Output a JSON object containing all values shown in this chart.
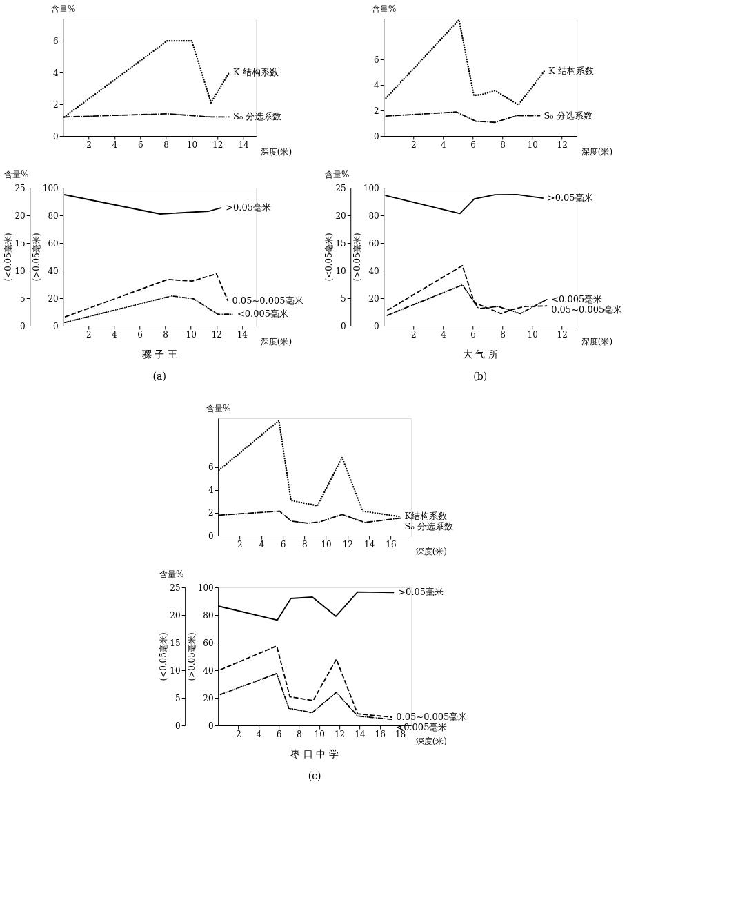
{
  "chart_data": [
    {
      "type": "line",
      "ylabel": "含量%",
      "xlabel": "深度(米)",
      "xlim": [
        0,
        15
      ],
      "xticks": [
        2,
        4,
        6,
        8,
        10,
        12,
        14
      ],
      "ylim": [
        0,
        7.4
      ],
      "yticks": [
        0,
        2,
        4,
        6
      ],
      "grid": false,
      "series": [
        {
          "name": "K 结构系数",
          "color": "#000000",
          "line_style": "dotted",
          "x": [
            0.1,
            8.1,
            10.0,
            11.5,
            12.9
          ],
          "values": [
            1.2,
            6.0,
            6.0,
            2.1,
            4.0
          ]
        },
        {
          "name": "S₀ 分选系数",
          "color": "#000000",
          "line_style": "dashdot",
          "x": [
            0.1,
            4,
            8.1,
            11.5,
            12.9
          ],
          "values": [
            1.2,
            1.3,
            1.4,
            1.2,
            1.2
          ]
        }
      ]
    },
    {
      "type": "line",
      "title": "含量%",
      "ylabel": "(>0.05毫米)",
      "y2label": "(<0.05毫米)",
      "xlabel": "深度(米)",
      "xlim": [
        0,
        15.1
      ],
      "xticks": [
        2,
        4,
        6,
        8,
        10,
        12,
        14
      ],
      "ylim": [
        0,
        100
      ],
      "yticks": [
        0,
        20,
        40,
        60,
        80,
        100
      ],
      "y2lim": [
        0,
        25
      ],
      "y2ticks": [
        0,
        5,
        10,
        15,
        20,
        25
      ],
      "grid": false,
      "annotations": [
        "骡 子 王",
        "(a)"
      ],
      "series": [
        {
          "name": ">0.05毫米",
          "color": "#000000",
          "line_style": "solid",
          "x": [
            0.1,
            7.6,
            11.4,
            12.4
          ],
          "values": [
            95,
            81,
            83,
            85.6
          ]
        },
        {
          "name": "0.05~0.005毫米",
          "color": "#000000",
          "line_style": "dashed",
          "axis": "y2",
          "x": [
            0.15,
            8.2,
            10.1,
            12.0,
            12.9
          ],
          "values": [
            1.6,
            8.4,
            8.1,
            9.4,
            4.5
          ]
        },
        {
          "name": "<0.005毫米",
          "color": "#000000",
          "line_style": "dashdotdot",
          "axis": "y2",
          "x": [
            0.15,
            8.5,
            10.2,
            12.1,
            13.3
          ],
          "values": [
            0.6,
            5.4,
            4.9,
            2.1,
            2.1
          ]
        }
      ]
    },
    {
      "type": "line",
      "ylabel": "含量%",
      "xlabel": "深度(米)",
      "xlim": [
        0,
        13
      ],
      "xticks": [
        2,
        4,
        6,
        8,
        10,
        12
      ],
      "ylim": [
        0,
        9.2
      ],
      "yticks": [
        0,
        2,
        4,
        6
      ],
      "grid": false,
      "series": [
        {
          "name": "K 结构系数",
          "color": "#000000",
          "line_style": "dotted",
          "x": [
            0.15,
            5.07,
            6.07,
            6.6,
            7.5,
            9.07,
            10.8
          ],
          "values": [
            2.96,
            9.1,
            3.19,
            3.25,
            3.56,
            2.44,
            5.07
          ]
        },
        {
          "name": "S₀ 分选系数",
          "color": "#000000",
          "line_style": "dashdot",
          "x": [
            0.15,
            4.9,
            6.2,
            7.5,
            8.96,
            10.5
          ],
          "values": [
            1.56,
            1.88,
            1.16,
            1.07,
            1.6,
            1.59
          ]
        }
      ]
    },
    {
      "type": "line",
      "title": "含量%",
      "ylabel": "(>0.05毫米)",
      "y2label": "(<0.05毫米)",
      "xlabel": "深度(米)",
      "xlim": [
        0,
        13
      ],
      "xticks": [
        2,
        4,
        6,
        8,
        10,
        12
      ],
      "ylim": [
        0,
        100
      ],
      "yticks": [
        0,
        20,
        40,
        60,
        80,
        100
      ],
      "y2lim": [
        0,
        25
      ],
      "y2ticks": [
        0,
        5,
        10,
        15,
        20,
        25
      ],
      "grid": false,
      "annotations": [
        "大 气 所",
        "(b)"
      ],
      "series": [
        {
          "name": ">0.05毫米",
          "color": "#000000",
          "line_style": "solid",
          "x": [
            0.1,
            5.13,
            6.1,
            7.5,
            8.98,
            10.75
          ],
          "values": [
            94.4,
            81.3,
            91.9,
            94.9,
            95.1,
            92.4
          ]
        },
        {
          "name": "<0.005毫米",
          "color": "#000000",
          "line_style": "dashdotdot",
          "axis": "y2",
          "x": [
            0.24,
            5.3,
            6.4,
            7.7,
            9.2,
            11.0
          ],
          "values": [
            1.9,
            7.4,
            3.1,
            3.5,
            2.2,
            4.8
          ]
        },
        {
          "name": "0.05~0.005毫米",
          "color": "#000000",
          "line_style": "dashed",
          "axis": "y2",
          "x": [
            0.24,
            5.3,
            6.1,
            7.9,
            8.6,
            9.5,
            11.0
          ],
          "values": [
            2.8,
            10.9,
            4.2,
            2.2,
            2.9,
            3.5,
            3.6
          ]
        }
      ]
    },
    {
      "type": "line",
      "ylabel": "含量%",
      "xlabel": "深度(米)",
      "xlim": [
        0,
        17.9
      ],
      "xticks": [
        2,
        4,
        6,
        8,
        10,
        12,
        14,
        16
      ],
      "ylim": [
        0,
        10.3
      ],
      "yticks": [
        0,
        2,
        4,
        6
      ],
      "grid": false,
      "series": [
        {
          "name": "K结构系数",
          "color": "#000000",
          "line_style": "dotted",
          "x": [
            0.09,
            5.64,
            6.76,
            7.9,
            9.2,
            11.5,
            13.4,
            16.9
          ],
          "values": [
            5.76,
            10.1,
            3.1,
            2.87,
            2.63,
            6.85,
            2.15,
            1.67
          ]
        },
        {
          "name": "S₀ 分选系数",
          "color": "#000000",
          "line_style": "dashdot",
          "x": [
            0.09,
            5.7,
            6.8,
            8.3,
            9.4,
            11.5,
            13.6,
            16.9
          ],
          "values": [
            1.8,
            2.15,
            1.27,
            1.1,
            1.2,
            1.86,
            1.16,
            1.54
          ]
        }
      ]
    },
    {
      "type": "line",
      "title": "含量%",
      "ylabel": "(>0.05毫米)",
      "y2label": "(<0.05毫米)",
      "xlabel": "深度(米)",
      "xlim": [
        0,
        19.1
      ],
      "xticks": [
        2,
        4,
        6,
        8,
        10,
        12,
        14,
        16,
        18
      ],
      "ylim": [
        0,
        100
      ],
      "yticks": [
        0,
        20,
        40,
        60,
        80,
        100
      ],
      "y2lim": [
        0,
        25
      ],
      "y2ticks": [
        0,
        5,
        10,
        15,
        20,
        25
      ],
      "grid": false,
      "annotations": [
        "枣 口 中 学",
        "(c)"
      ],
      "series": [
        {
          "name": ">0.05毫米",
          "color": "#000000",
          "line_style": "solid",
          "x": [
            0,
            5.85,
            7.2,
            9.33,
            11.65,
            13.8,
            17.4
          ],
          "values": [
            86.5,
            76.3,
            92,
            93,
            79.1,
            96.7,
            96.3
          ]
        },
        {
          "name": "0.05~0.005毫米",
          "color": "#000000",
          "line_style": "dashed",
          "axis": "y2",
          "x": [
            0.24,
            5.8,
            7.1,
            9.4,
            11.7,
            13.8,
            17.2
          ],
          "values": [
            10.1,
            14.4,
            5.2,
            4.5,
            12.0,
            2.1,
            1.5
          ]
        },
        {
          "name": "<0.005毫米",
          "color": "#000000",
          "line_style": "dashdotdot",
          "axis": "y2",
          "x": [
            0.24,
            5.8,
            7.0,
            9.3,
            11.7,
            13.8,
            17.2
          ],
          "values": [
            5.6,
            9.4,
            3.1,
            2.3,
            6.0,
            1.7,
            1.1
          ]
        }
      ]
    }
  ]
}
